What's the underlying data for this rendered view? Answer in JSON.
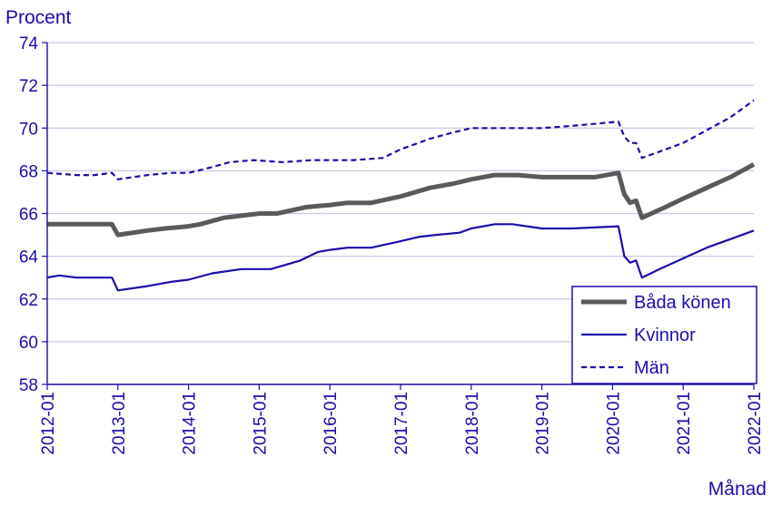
{
  "chart_data": {
    "type": "line",
    "ylabel": "Procent",
    "xlabel": "Månad",
    "ylim": [
      58,
      74
    ],
    "yticks": [
      58,
      60,
      62,
      64,
      66,
      68,
      70,
      72,
      74
    ],
    "xticks": [
      "2012-01",
      "2013-01",
      "2014-01",
      "2015-01",
      "2016-01",
      "2017-01",
      "2018-01",
      "2019-01",
      "2020-01",
      "2021-01",
      "2022-01"
    ],
    "grid": "horizontal",
    "legend_position": "bottom-right",
    "colors": {
      "axis": "#1a0dab",
      "grid": "#c8c8e6",
      "bada": "#5a5a5a",
      "kvinnor": "#1a0dab",
      "man": "#1a0dab"
    },
    "series": [
      {
        "name": "Båda könen",
        "style": "thick",
        "points": [
          [
            "2012-01",
            65.5
          ],
          [
            "2012-06",
            65.5
          ],
          [
            "2012-11",
            65.5
          ],
          [
            "2012-12",
            65.5
          ],
          [
            "2013-01",
            65.0
          ],
          [
            "2013-06",
            65.2
          ],
          [
            "2013-09",
            65.3
          ],
          [
            "2014-01",
            65.4
          ],
          [
            "2014-03",
            65.5
          ],
          [
            "2014-07",
            65.8
          ],
          [
            "2014-10",
            65.9
          ],
          [
            "2015-01",
            66.0
          ],
          [
            "2015-04",
            66.0
          ],
          [
            "2015-09",
            66.3
          ],
          [
            "2016-01",
            66.4
          ],
          [
            "2016-04",
            66.5
          ],
          [
            "2016-08",
            66.5
          ],
          [
            "2017-01",
            66.8
          ],
          [
            "2017-06",
            67.2
          ],
          [
            "2017-10",
            67.4
          ],
          [
            "2018-01",
            67.6
          ],
          [
            "2018-05",
            67.8
          ],
          [
            "2018-09",
            67.8
          ],
          [
            "2019-01",
            67.7
          ],
          [
            "2019-06",
            67.7
          ],
          [
            "2019-10",
            67.7
          ],
          [
            "2019-12",
            67.8
          ],
          [
            "2020-02",
            67.9
          ],
          [
            "2020-03",
            66.9
          ],
          [
            "2020-04",
            66.5
          ],
          [
            "2020-05",
            66.6
          ],
          [
            "2020-06",
            65.8
          ],
          [
            "2020-10",
            66.3
          ],
          [
            "2021-01",
            66.7
          ],
          [
            "2021-05",
            67.2
          ],
          [
            "2021-09",
            67.7
          ],
          [
            "2022-01",
            68.3
          ]
        ]
      },
      {
        "name": "Kvinnor",
        "style": "solid",
        "points": [
          [
            "2012-01",
            63.0
          ],
          [
            "2012-03",
            63.1
          ],
          [
            "2012-06",
            63.0
          ],
          [
            "2012-12",
            63.0
          ],
          [
            "2013-01",
            62.4
          ],
          [
            "2013-06",
            62.6
          ],
          [
            "2013-10",
            62.8
          ],
          [
            "2014-01",
            62.9
          ],
          [
            "2014-05",
            63.2
          ],
          [
            "2014-10",
            63.4
          ],
          [
            "2015-01",
            63.4
          ],
          [
            "2015-03",
            63.4
          ],
          [
            "2015-08",
            63.8
          ],
          [
            "2015-11",
            64.2
          ],
          [
            "2016-01",
            64.3
          ],
          [
            "2016-04",
            64.4
          ],
          [
            "2016-08",
            64.4
          ],
          [
            "2017-01",
            64.7
          ],
          [
            "2017-04",
            64.9
          ],
          [
            "2017-07",
            65.0
          ],
          [
            "2017-11",
            65.1
          ],
          [
            "2018-01",
            65.3
          ],
          [
            "2018-05",
            65.5
          ],
          [
            "2018-08",
            65.5
          ],
          [
            "2019-01",
            65.3
          ],
          [
            "2019-06",
            65.3
          ],
          [
            "2020-02",
            65.4
          ],
          [
            "2020-03",
            64.0
          ],
          [
            "2020-04",
            63.7
          ],
          [
            "2020-05",
            63.8
          ],
          [
            "2020-06",
            63.0
          ],
          [
            "2020-09",
            63.4
          ],
          [
            "2021-01",
            63.9
          ],
          [
            "2021-05",
            64.4
          ],
          [
            "2021-09",
            64.8
          ],
          [
            "2022-01",
            65.2
          ]
        ]
      },
      {
        "name": "Män",
        "style": "dashed",
        "points": [
          [
            "2012-01",
            67.9
          ],
          [
            "2012-06",
            67.8
          ],
          [
            "2012-09",
            67.8
          ],
          [
            "2012-12",
            67.9
          ],
          [
            "2013-01",
            67.6
          ],
          [
            "2013-06",
            67.8
          ],
          [
            "2013-10",
            67.9
          ],
          [
            "2014-01",
            67.9
          ],
          [
            "2014-04",
            68.1
          ],
          [
            "2014-08",
            68.4
          ],
          [
            "2014-12",
            68.5
          ],
          [
            "2015-05",
            68.4
          ],
          [
            "2015-10",
            68.5
          ],
          [
            "2016-01",
            68.5
          ],
          [
            "2016-05",
            68.5
          ],
          [
            "2016-10",
            68.6
          ],
          [
            "2017-01",
            69.0
          ],
          [
            "2017-06",
            69.5
          ],
          [
            "2017-10",
            69.8
          ],
          [
            "2018-01",
            70.0
          ],
          [
            "2018-06",
            70.0
          ],
          [
            "2019-01",
            70.0
          ],
          [
            "2019-06",
            70.1
          ],
          [
            "2020-02",
            70.3
          ],
          [
            "2020-03",
            69.6
          ],
          [
            "2020-04",
            69.3
          ],
          [
            "2020-05",
            69.3
          ],
          [
            "2020-06",
            68.6
          ],
          [
            "2020-09",
            68.9
          ],
          [
            "2021-01",
            69.3
          ],
          [
            "2021-05",
            69.9
          ],
          [
            "2021-09",
            70.5
          ],
          [
            "2022-01",
            71.3
          ]
        ]
      }
    ]
  }
}
